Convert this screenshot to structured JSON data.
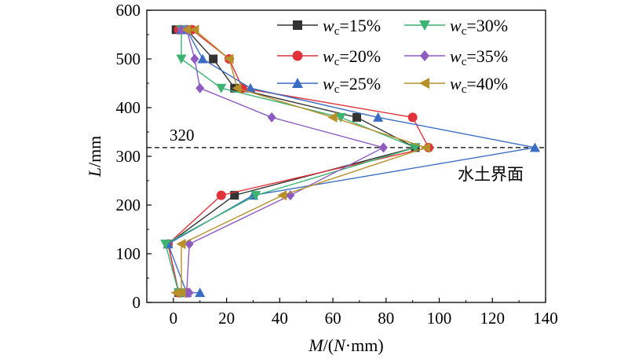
{
  "chart_data": {
    "type": "line",
    "xlabel": {
      "var": "M",
      "unit": "N·mm"
    },
    "ylabel": {
      "var": "L",
      "unit": "mm"
    },
    "xlim": [
      -10,
      140
    ],
    "ylim": [
      0,
      600
    ],
    "xticks": [
      0,
      20,
      40,
      60,
      80,
      100,
      120,
      140
    ],
    "yticks": [
      0,
      100,
      200,
      300,
      400,
      500,
      600
    ],
    "grid": false,
    "legend": {
      "placement": "top-right",
      "columns": 2
    },
    "annotations": [
      {
        "type": "hline",
        "y": 318,
        "label": "320"
      },
      {
        "type": "text",
        "label": "水土界面"
      }
    ],
    "series": [
      {
        "name": "wc=15%",
        "label_var": "w",
        "label_sub": "c",
        "label_val": "=15%",
        "color": "#333333",
        "marker": "square",
        "x": [
          1,
          5,
          15,
          23,
          69,
          91,
          23,
          -2,
          2,
          4
        ],
        "y": [
          560,
          560,
          500,
          440,
          380,
          318,
          220,
          120,
          20,
          20
        ]
      },
      {
        "name": "wc=20%",
        "label_var": "w",
        "label_sub": "c",
        "label_val": "=20%",
        "color": "#e0323a",
        "marker": "circle",
        "x": [
          2,
          7,
          21,
          26,
          90,
          96,
          18,
          -2,
          2,
          5
        ],
        "y": [
          560,
          560,
          500,
          440,
          380,
          318,
          220,
          120,
          20,
          20
        ]
      },
      {
        "name": "wc=25%",
        "label_var": "w",
        "label_sub": "c",
        "label_val": "=25%",
        "color": "#3b6cc4",
        "marker": "triangle-up",
        "x": [
          3,
          5,
          11,
          29,
          77,
          136,
          30,
          -2,
          5,
          10
        ],
        "y": [
          560,
          560,
          500,
          440,
          380,
          318,
          220,
          120,
          20,
          20
        ]
      },
      {
        "name": "wc=30%",
        "label_var": "w",
        "label_sub": "c",
        "label_val": "=30%",
        "color": "#3cb371",
        "marker": "triangle-down",
        "x": [
          3,
          3,
          3,
          18,
          63,
          91,
          31,
          -3,
          2,
          3
        ],
        "y": [
          560,
          560,
          500,
          440,
          380,
          318,
          220,
          120,
          20,
          20
        ]
      },
      {
        "name": "wc=35%",
        "label_var": "w",
        "label_sub": "c",
        "label_val": "=35%",
        "color": "#8e5cc1",
        "marker": "diamond",
        "x": [
          3,
          5,
          8,
          10,
          37,
          79,
          44,
          6,
          5,
          6
        ],
        "y": [
          560,
          560,
          500,
          440,
          380,
          318,
          220,
          120,
          20,
          20
        ]
      },
      {
        "name": "wc=40%",
        "label_var": "w",
        "label_sub": "c",
        "label_val": "=40%",
        "color": "#b8902a",
        "marker": "triangle-left",
        "x": [
          5,
          8,
          21,
          24,
          60,
          95,
          41,
          3,
          3,
          1
        ],
        "y": [
          560,
          560,
          500,
          440,
          380,
          318,
          220,
          120,
          20,
          20
        ]
      }
    ]
  }
}
